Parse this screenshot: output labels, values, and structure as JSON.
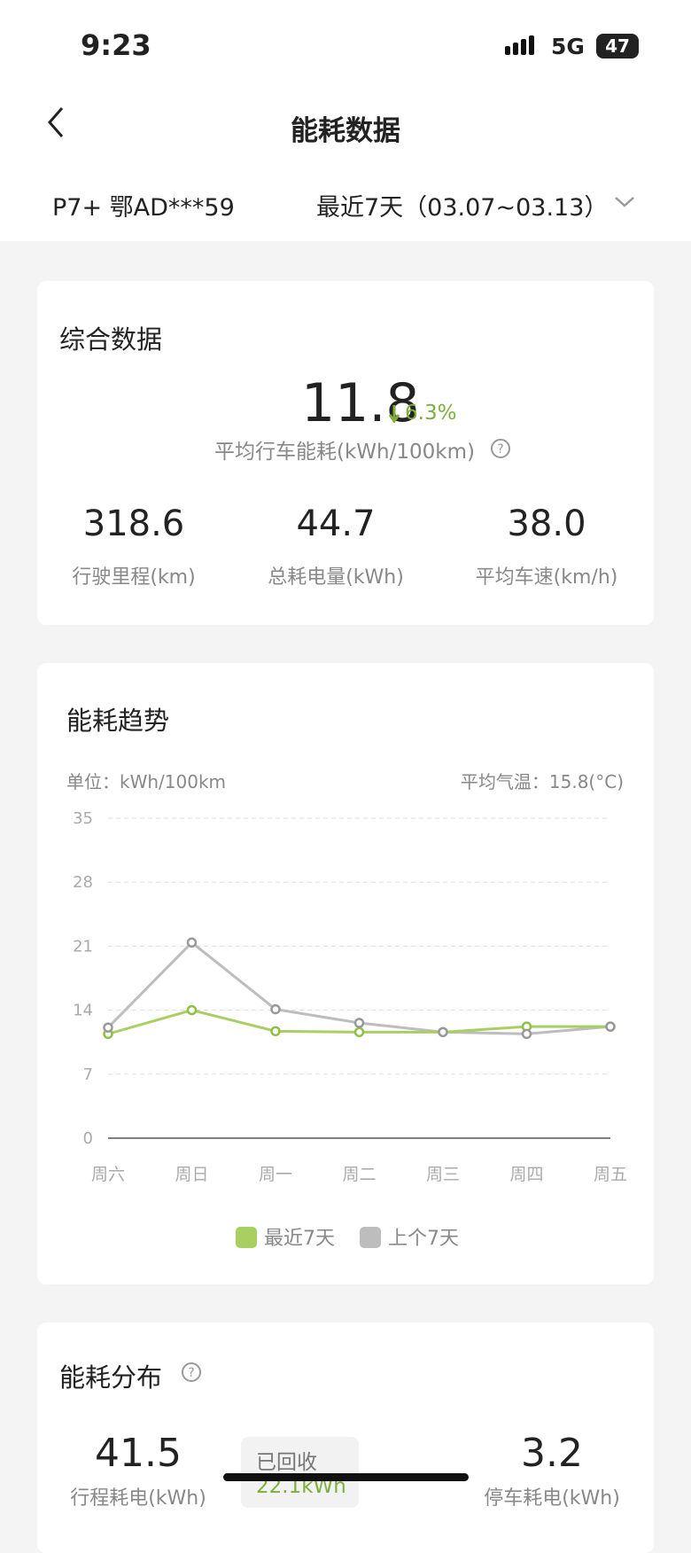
{
  "status_bar": {
    "time": "9:23",
    "network": "5G",
    "battery": "47"
  },
  "header": {
    "title": "能耗数据"
  },
  "vehicle": "P7+ 鄂AD***59",
  "period": "最近7天（03.07~03.13）",
  "summary": {
    "title": "综合数据",
    "avg_consumption": "11.8",
    "change": "6.3%",
    "avg_label": "平均行车能耗(kWh/100km)",
    "stats": [
      {
        "value": "318.6",
        "label": "行驶里程(km)"
      },
      {
        "value": "44.7",
        "label": "总耗电量(kWh)"
      },
      {
        "value": "38.0",
        "label": "平均车速(km/h)"
      }
    ]
  },
  "trend": {
    "title": "能耗趋势",
    "unit": "单位：kWh/100km",
    "temperature": "平均气温：15.8(°C)"
  },
  "chart_data": {
    "type": "line",
    "categories": [
      "周六",
      "周日",
      "周一",
      "周二",
      "周三",
      "周四",
      "周五"
    ],
    "series": [
      {
        "name": "最近7天",
        "color": "#a8cf62",
        "values": [
          11.4,
          14.0,
          11.7,
          11.6,
          11.6,
          12.2,
          12.2
        ]
      },
      {
        "name": "上个7天",
        "color": "#bdbdbd",
        "values": [
          12.1,
          21.4,
          14.1,
          12.6,
          11.6,
          11.4,
          12.2
        ]
      }
    ],
    "ylim": [
      0,
      35
    ],
    "yticks": [
      0,
      7,
      14,
      21,
      28,
      35
    ],
    "grid": true
  },
  "distribution": {
    "title": "能耗分布",
    "trip": {
      "value": "41.5",
      "label": "行程耗电(kWh)"
    },
    "recovered": {
      "label": "已回收",
      "value": "22.1kWh"
    },
    "parking": {
      "value": "3.2",
      "label": "停车耗电(kWh)"
    }
  }
}
